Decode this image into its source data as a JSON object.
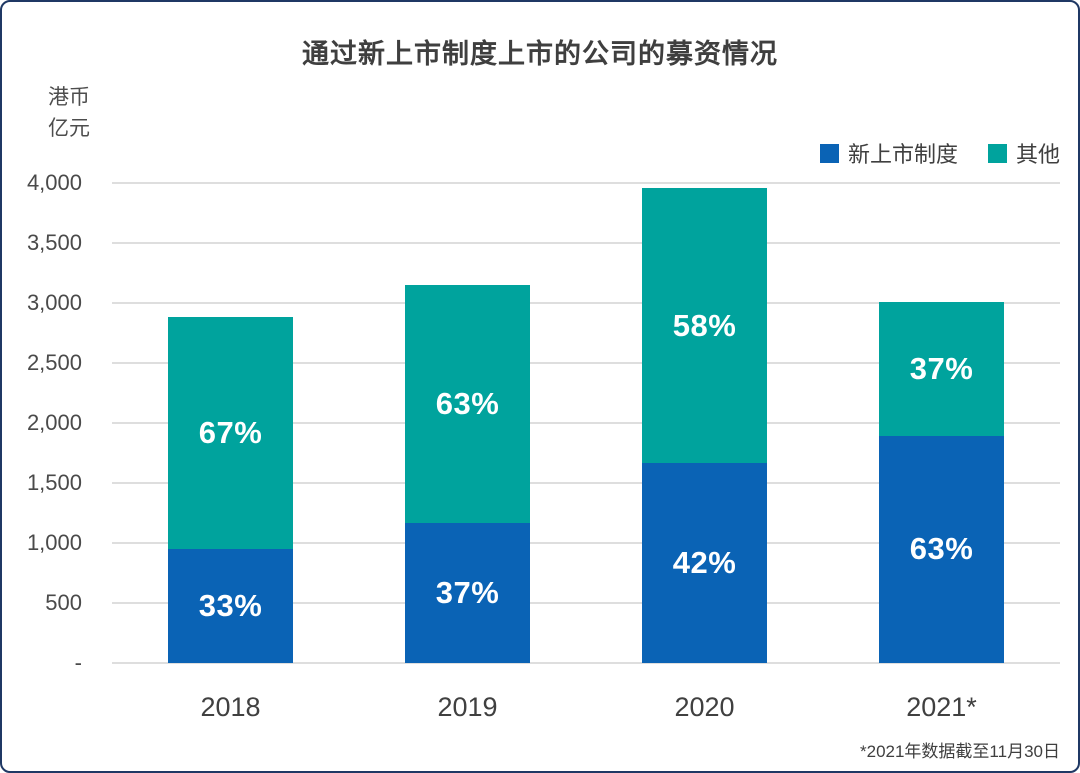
{
  "title": "通过新上市制度上市的公司的募资情况",
  "y_axis_unit": {
    "line1": "港币",
    "line2": "亿元"
  },
  "legend": {
    "items": [
      {
        "label": "新上市制度",
        "color": "#0A63B5"
      },
      {
        "label": "其他",
        "color": "#00A39D"
      }
    ]
  },
  "footnote": "*2021年数据截至11月30日",
  "colors": {
    "new_regime_blue": "#0A63B5",
    "other_teal": "#00A39D",
    "frame_border": "#1F3864",
    "gridline": "#DEDEDE",
    "text_dark": "#3F3F3F",
    "percent_label": "#FFFFFF"
  },
  "chart_data": {
    "type": "bar",
    "stacked": true,
    "title": "通过新上市制度上市的公司的募资情况",
    "ylabel": "港币亿元",
    "categories": [
      "2018",
      "2019",
      "2020",
      "2021*"
    ],
    "series": [
      {
        "name": "新上市制度",
        "color": "#0A63B5",
        "values": [
          950,
          1165,
          1665,
          1895
        ],
        "percent_labels": [
          "33%",
          "37%",
          "42%",
          "63%"
        ]
      },
      {
        "name": "其他",
        "color": "#00A39D",
        "values": [
          1930,
          1985,
          2295,
          1115
        ],
        "percent_labels": [
          "67%",
          "63%",
          "58%",
          "37%"
        ]
      }
    ],
    "totals": [
      2880,
      3150,
      3960,
      3010
    ],
    "ylim": [
      0,
      4000
    ],
    "yticks": [
      {
        "value": 0,
        "label": "-"
      },
      {
        "value": 500,
        "label": "500"
      },
      {
        "value": 1000,
        "label": "1,000"
      },
      {
        "value": 1500,
        "label": "1,500"
      },
      {
        "value": 2000,
        "label": "2,000"
      },
      {
        "value": 2500,
        "label": "2,500"
      },
      {
        "value": 3000,
        "label": "3,000"
      },
      {
        "value": 3500,
        "label": "3,500"
      },
      {
        "value": 4000,
        "label": "4,000"
      }
    ],
    "grid": true,
    "legend_position": "top-right"
  }
}
